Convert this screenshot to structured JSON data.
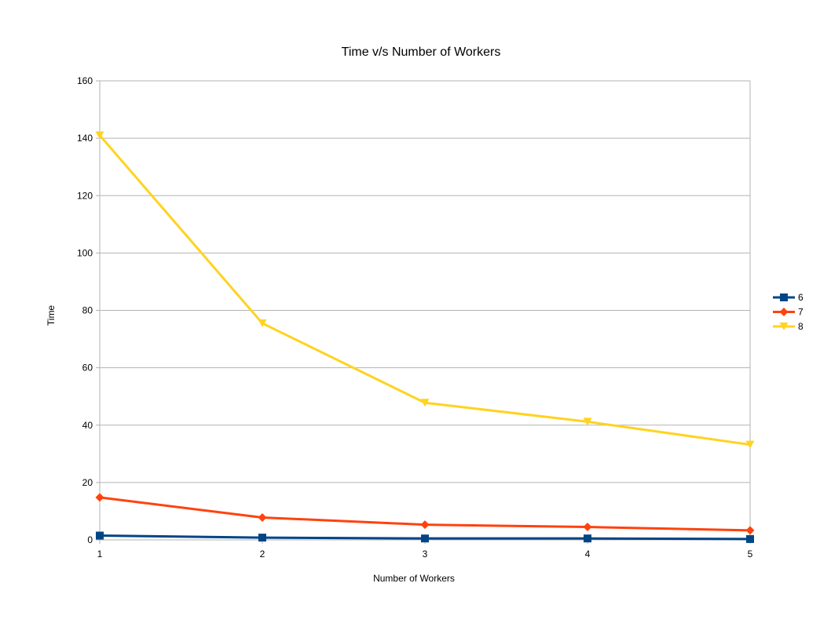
{
  "chart_data": {
    "type": "line",
    "title": "Time v/s Number of Workers",
    "xlabel": "Number of Workers",
    "ylabel": "Time",
    "x": [
      1,
      2,
      3,
      4,
      5
    ],
    "xlim": [
      1,
      5
    ],
    "ylim": [
      0,
      160
    ],
    "yticks": [
      0,
      20,
      40,
      60,
      80,
      100,
      120,
      140,
      160
    ],
    "grid": "horizontal",
    "legend_position": "right",
    "series": [
      {
        "name": "6",
        "color": "#004586",
        "marker": "square",
        "values": [
          1.5,
          0.8,
          0.5,
          0.5,
          0.3
        ]
      },
      {
        "name": "7",
        "color": "#ff420e",
        "marker": "diamond",
        "values": [
          14.8,
          7.8,
          5.3,
          4.5,
          3.3
        ]
      },
      {
        "name": "8",
        "color": "#ffd320",
        "marker": "triangle-down",
        "values": [
          141,
          75.5,
          47.8,
          41.2,
          33.2
        ]
      }
    ]
  }
}
